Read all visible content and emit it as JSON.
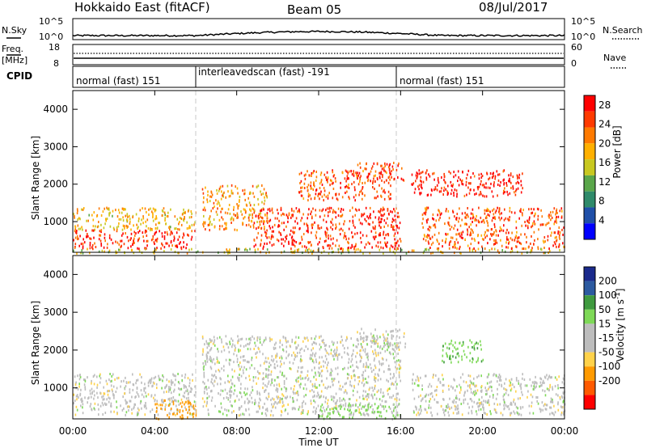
{
  "header": {
    "radar": "Hokkaido East (fitACF)",
    "beam": "Beam 05",
    "date": "08/Jul/2017"
  },
  "noise_panel": {
    "left_label": "N.Sky",
    "right_label": "N.Search",
    "left_ticks": [
      "10^5",
      "10^0"
    ],
    "right_ticks": [
      "10^5",
      "10^0"
    ]
  },
  "freq_panel": {
    "left_label_1": "Freq.",
    "left_label_2": "[MHz]",
    "left_ticks": [
      "18",
      "8"
    ],
    "right_label": "Nave",
    "right_ticks": [
      "60",
      "0"
    ]
  },
  "cpid_panel": {
    "label": "CPID",
    "segments": [
      {
        "start_hour": 0,
        "end_hour": 6,
        "text": "normal (fast) 151"
      },
      {
        "start_hour": 6,
        "end_hour": 16,
        "text": "interleavedscan (fast) -191"
      },
      {
        "start_hour": 16,
        "end_hour": 24,
        "text": "normal (fast) 151"
      }
    ]
  },
  "x_axis": {
    "label": "Time UT",
    "ticks": [
      "00:00",
      "04:00",
      "08:00",
      "12:00",
      "16:00",
      "20:00",
      "00:00"
    ],
    "range_hours": [
      0,
      24
    ]
  },
  "colors": {
    "power": [
      "#0000ff",
      "#1f4fa8",
      "#2f8a6a",
      "#5aa64a",
      "#c8c820",
      "#ffb000",
      "#ff7a00",
      "#ff3a00",
      "#ff0000"
    ],
    "velocity": [
      "#ff0000",
      "#ff5a00",
      "#ff9a00",
      "#ffd24a",
      "#bdbdbd",
      "#bdbdbd",
      "#7ed957",
      "#3f9a3f",
      "#2c5aa0",
      "#1a2a8c"
    ],
    "ground_scatter": "#bdbdbd"
  },
  "chart_data": [
    {
      "type": "heatmap",
      "ylabel": "Slant Range [km]",
      "y_ticks": [
        "1000",
        "2000",
        "3000",
        "4000"
      ],
      "ylim": [
        180,
        4500
      ],
      "colorbar_label": "Power [dB]",
      "colorbar_ticks": [
        "4",
        "8",
        "12",
        "16",
        "20",
        "24",
        "28"
      ],
      "colorbar_range": [
        0,
        30
      ],
      "regions": [
        {
          "t": [
            0.0,
            6.0
          ],
          "r": [
            300,
            800
          ],
          "value": 27
        },
        {
          "t": [
            0.0,
            6.0
          ],
          "r": [
            800,
            1400
          ],
          "value": 18
        },
        {
          "t": [
            6.3,
            9.5
          ],
          "r": [
            800,
            2000
          ],
          "value": 20
        },
        {
          "t": [
            8.8,
            16.0
          ],
          "r": [
            300,
            1400
          ],
          "value": 26
        },
        {
          "t": [
            11.0,
            15.5
          ],
          "r": [
            1600,
            2400
          ],
          "value": 24
        },
        {
          "t": [
            13.8,
            16.3
          ],
          "r": [
            2100,
            2600
          ],
          "value": 25
        },
        {
          "t": [
            16.5,
            22.0
          ],
          "r": [
            1700,
            2400
          ],
          "value": 28
        },
        {
          "t": [
            17.0,
            24.0
          ],
          "r": [
            300,
            1400
          ],
          "value": 24
        },
        {
          "t": [
            0.0,
            24.0
          ],
          "r": [
            180,
            300
          ],
          "value": 16
        }
      ]
    },
    {
      "type": "heatmap",
      "ylabel": "Slant Range [km]",
      "y_ticks": [
        "1000",
        "2000",
        "3000",
        "4000"
      ],
      "ylim": [
        180,
        4500
      ],
      "colorbar_label": "Velocity [m s^-1]",
      "colorbar_ticks": [
        "200",
        "100",
        "50",
        "15",
        "-15",
        "-50",
        "-100",
        "-200"
      ],
      "colorbar_range": [
        -250,
        250
      ],
      "regions": [
        {
          "t": [
            0.0,
            6.0
          ],
          "r": [
            300,
            1400
          ],
          "value": 0
        },
        {
          "t": [
            6.3,
            16.0
          ],
          "r": [
            300,
            2400
          ],
          "value": 0
        },
        {
          "t": [
            13.8,
            16.3
          ],
          "r": [
            2100,
            2600
          ],
          "value": 0
        },
        {
          "t": [
            18.0,
            20.0
          ],
          "r": [
            1700,
            2300
          ],
          "value": 40
        },
        {
          "t": [
            16.5,
            24.0
          ],
          "r": [
            300,
            1400
          ],
          "value": 0
        },
        {
          "t": [
            4.0,
            6.0
          ],
          "r": [
            200,
            700
          ],
          "value": -80
        },
        {
          "t": [
            12.0,
            16.0
          ],
          "r": [
            200,
            600
          ],
          "value": 30
        }
      ]
    }
  ]
}
